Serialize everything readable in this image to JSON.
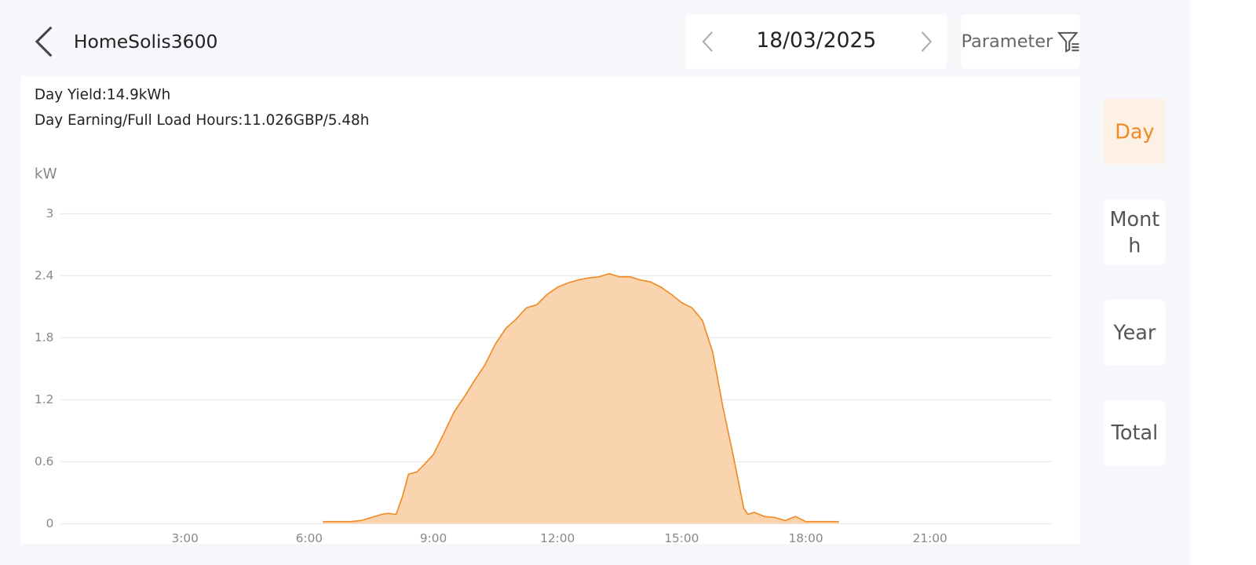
{
  "header": {
    "title": "HomeSolis3600",
    "date": "18/03/2025",
    "parameter": "Parameter"
  },
  "summary": {
    "day_yield": "Day Yield:14.9kWh",
    "day_earning": "Day Earning/Full Load Hours:11.026GBP/5.48h"
  },
  "tabs": [
    "Day",
    "Month",
    "Year",
    "Total"
  ],
  "chart_data": {
    "type": "area",
    "y_label": "kW",
    "color": "#f08a24",
    "fill": "#f9d4ae",
    "grid": true,
    "xlim": [
      0,
      24
    ],
    "xticks": [
      {
        "value": 3,
        "label": "3:00"
      },
      {
        "value": 6,
        "label": "6:00"
      },
      {
        "value": 9,
        "label": "9:00"
      },
      {
        "value": 12,
        "label": "12:00"
      },
      {
        "value": 15,
        "label": "15:00"
      },
      {
        "value": 18,
        "label": "18:00"
      },
      {
        "value": 21,
        "label": "21:00"
      }
    ],
    "ylim": [
      0,
      3
    ],
    "yticks": [
      0,
      0.6,
      1.2,
      1.8,
      2.4,
      3
    ],
    "x": [
      6.33,
      6.75,
      7.0,
      7.25,
      7.5,
      7.75,
      7.9,
      8.1,
      8.25,
      8.4,
      8.6,
      8.75,
      9.0,
      9.25,
      9.5,
      9.75,
      10.0,
      10.25,
      10.5,
      10.75,
      11.0,
      11.25,
      11.5,
      11.75,
      12.0,
      12.25,
      12.5,
      12.75,
      13.0,
      13.25,
      13.5,
      13.75,
      14.0,
      14.25,
      14.5,
      14.75,
      15.0,
      15.25,
      15.5,
      15.75,
      16.0,
      16.25,
      16.5,
      16.6,
      16.75,
      17.0,
      17.25,
      17.5,
      17.75,
      18.0,
      18.5,
      18.8
    ],
    "values": [
      0.02,
      0.02,
      0.02,
      0.03,
      0.06,
      0.09,
      0.1,
      0.09,
      0.26,
      0.48,
      0.5,
      0.56,
      0.67,
      0.87,
      1.08,
      1.23,
      1.39,
      1.54,
      1.74,
      1.89,
      1.98,
      2.09,
      2.12,
      2.22,
      2.29,
      2.33,
      2.36,
      2.38,
      2.39,
      2.42,
      2.39,
      2.39,
      2.36,
      2.34,
      2.29,
      2.22,
      2.14,
      2.09,
      1.97,
      1.66,
      1.12,
      0.65,
      0.15,
      0.09,
      0.11,
      0.07,
      0.06,
      0.03,
      0.07,
      0.02,
      0.02,
      0.02
    ]
  }
}
